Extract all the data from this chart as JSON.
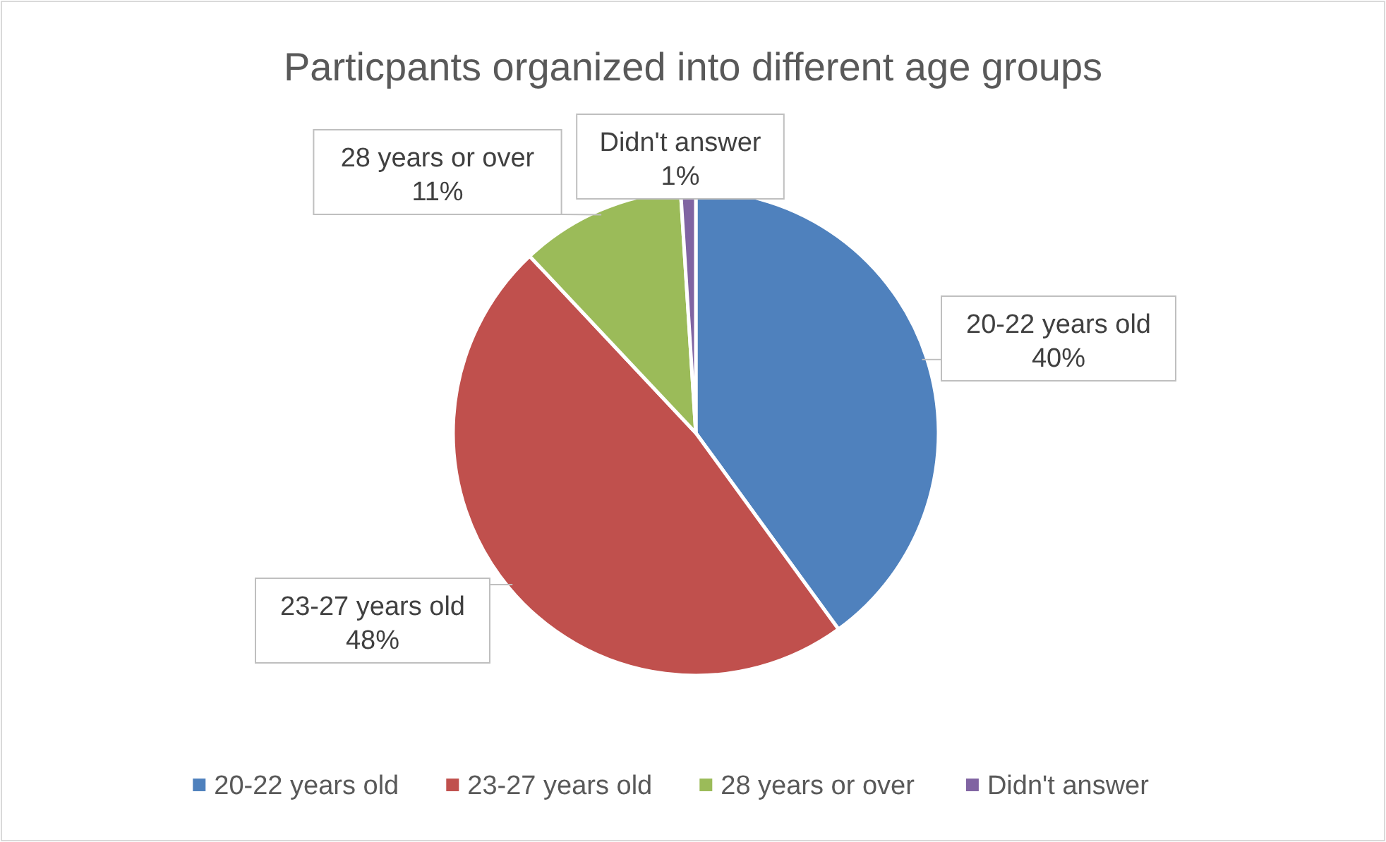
{
  "chart_data": {
    "type": "pie",
    "title": "Particpants organized into different age groups",
    "categories": [
      "20-22 years old",
      "23-27 years old",
      "28 years or over",
      "Didn't answer"
    ],
    "values": [
      40,
      48,
      11,
      1
    ],
    "value_labels": [
      "40%",
      "48%",
      "11%",
      "1%"
    ],
    "colors": [
      "#4f81bd",
      "#c0504d",
      "#9bbb59",
      "#8064a2"
    ],
    "legend": "bottom"
  }
}
